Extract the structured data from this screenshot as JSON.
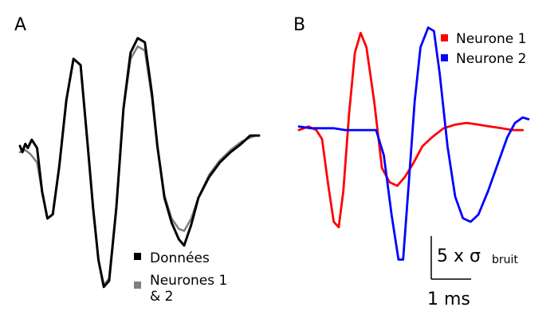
{
  "chart_data": [
    {
      "type": "line",
      "panel": "A",
      "xlabel": "",
      "ylabel": "",
      "series": [
        {
          "name": "Données",
          "color": "#000000",
          "values": [
            [
              0,
              0.0
            ],
            [
              0.07,
              -0.3
            ],
            [
              0.15,
              0.1
            ],
            [
              0.22,
              -0.1
            ],
            [
              0.33,
              0.3
            ],
            [
              0.48,
              -0.1
            ],
            [
              0.62,
              -2.2
            ],
            [
              0.77,
              -3.5
            ],
            [
              0.92,
              -3.3
            ],
            [
              1.1,
              -1.0
            ],
            [
              1.3,
              2.2
            ],
            [
              1.5,
              4.2
            ],
            [
              1.7,
              3.9
            ],
            [
              1.9,
              0.0
            ],
            [
              2.05,
              -3.0
            ],
            [
              2.2,
              -5.5
            ],
            [
              2.35,
              -6.8
            ],
            [
              2.5,
              -6.5
            ],
            [
              2.7,
              -3.0
            ],
            [
              2.9,
              1.8
            ],
            [
              3.1,
              4.5
            ],
            [
              3.3,
              5.2
            ],
            [
              3.5,
              5.0
            ],
            [
              3.7,
              2.5
            ],
            [
              3.85,
              0.0
            ],
            [
              4.05,
              -2.5
            ],
            [
              4.25,
              -3.7
            ],
            [
              4.45,
              -4.5
            ],
            [
              4.6,
              -4.8
            ],
            [
              4.8,
              -3.8
            ],
            [
              5.0,
              -2.5
            ],
            [
              5.3,
              -1.5
            ],
            [
              5.6,
              -0.8
            ],
            [
              5.9,
              -0.3
            ],
            [
              6.2,
              0.1
            ],
            [
              6.45,
              0.5
            ],
            [
              6.7,
              0.5
            ]
          ]
        },
        {
          "name": "Neurones 1 & 2",
          "color": "#808080",
          "values": [
            [
              0,
              -0.3
            ],
            [
              0.15,
              -0.2
            ],
            [
              0.3,
              -0.4
            ],
            [
              0.48,
              -0.8
            ],
            [
              0.62,
              -2.2
            ],
            [
              0.77,
              -3.5
            ],
            [
              0.92,
              -3.3
            ],
            [
              1.1,
              -1.0
            ],
            [
              1.3,
              2.2
            ],
            [
              1.5,
              4.2
            ],
            [
              1.7,
              3.9
            ],
            [
              1.9,
              0.0
            ],
            [
              2.05,
              -3.0
            ],
            [
              2.2,
              -5.5
            ],
            [
              2.35,
              -6.7
            ],
            [
              2.5,
              -6.4
            ],
            [
              2.7,
              -3.0
            ],
            [
              2.9,
              1.8
            ],
            [
              3.1,
              4.2
            ],
            [
              3.3,
              4.8
            ],
            [
              3.5,
              4.6
            ],
            [
              3.7,
              2.3
            ],
            [
              3.85,
              0.0
            ],
            [
              4.05,
              -2.4
            ],
            [
              4.25,
              -3.5
            ],
            [
              4.45,
              -4.0
            ],
            [
              4.6,
              -4.1
            ],
            [
              4.8,
              -3.5
            ],
            [
              5.0,
              -2.5
            ],
            [
              5.3,
              -1.4
            ],
            [
              5.6,
              -0.7
            ],
            [
              5.9,
              -0.2
            ],
            [
              6.2,
              0.2
            ],
            [
              6.45,
              0.4
            ],
            [
              6.6,
              0.5
            ]
          ]
        }
      ],
      "legend": [
        {
          "label": "Données",
          "color": "#000000"
        },
        {
          "label_line1": "Neurones 1",
          "label_line2": "& 2",
          "color": "#808080"
        }
      ],
      "legend_position": "bottom-right",
      "xlim": [
        0,
        6.7
      ],
      "ylim": [
        -7.5,
        5.5
      ],
      "grid": false
    },
    {
      "type": "line",
      "panel": "B",
      "xlabel": "",
      "ylabel": "",
      "series": [
        {
          "name": "Neurone 1",
          "color": "#ff0000",
          "values": [
            [
              0,
              -0.1
            ],
            [
              0.25,
              0.1
            ],
            [
              0.45,
              -0.1
            ],
            [
              0.6,
              -0.6
            ],
            [
              0.75,
              -3.0
            ],
            [
              0.9,
              -5.2
            ],
            [
              1.03,
              -5.5
            ],
            [
              1.15,
              -3.5
            ],
            [
              1.3,
              0.8
            ],
            [
              1.45,
              4.2
            ],
            [
              1.6,
              5.3
            ],
            [
              1.75,
              4.5
            ],
            [
              1.95,
              1.5
            ],
            [
              2.15,
              -2.2
            ],
            [
              2.35,
              -3.0
            ],
            [
              2.55,
              -3.2
            ],
            [
              2.75,
              -2.7
            ],
            [
              2.95,
              -2.0
            ],
            [
              3.2,
              -1.0
            ],
            [
              3.45,
              -0.5
            ],
            [
              3.75,
              0.0
            ],
            [
              4.05,
              0.2
            ],
            [
              4.35,
              0.3
            ],
            [
              4.65,
              0.2
            ],
            [
              4.95,
              0.1
            ],
            [
              5.25,
              0.0
            ],
            [
              5.55,
              -0.1
            ],
            [
              5.8,
              -0.1
            ]
          ]
        },
        {
          "name": "Neurone 2",
          "color": "#0000ff",
          "values": [
            [
              0,
              0.1
            ],
            [
              0.3,
              0.0
            ],
            [
              0.6,
              0.0
            ],
            [
              0.9,
              0.0
            ],
            [
              1.2,
              -0.1
            ],
            [
              1.5,
              -0.1
            ],
            [
              1.8,
              -0.1
            ],
            [
              2.0,
              -0.1
            ],
            [
              2.2,
              -1.5
            ],
            [
              2.4,
              -4.8
            ],
            [
              2.58,
              -7.3
            ],
            [
              2.7,
              -7.3
            ],
            [
              2.85,
              -3.0
            ],
            [
              3.0,
              1.5
            ],
            [
              3.15,
              4.5
            ],
            [
              3.35,
              5.6
            ],
            [
              3.5,
              5.4
            ],
            [
              3.65,
              3.0
            ],
            [
              3.85,
              -1.0
            ],
            [
              4.05,
              -3.8
            ],
            [
              4.25,
              -5.0
            ],
            [
              4.45,
              -5.2
            ],
            [
              4.65,
              -4.8
            ],
            [
              4.9,
              -3.5
            ],
            [
              5.15,
              -2.0
            ],
            [
              5.4,
              -0.5
            ],
            [
              5.6,
              0.3
            ],
            [
              5.8,
              0.6
            ],
            [
              5.95,
              0.5
            ]
          ]
        }
      ],
      "legend": [
        {
          "label": "Neurone 1",
          "color": "#ff0000"
        },
        {
          "label": "Neurone 2",
          "color": "#0000ff"
        }
      ],
      "legend_position": "top-right",
      "scale_bar": {
        "x_label": "1 ms",
        "y_label_main": "5 x σ",
        "y_label_sub": "bruit"
      },
      "xlim": [
        0,
        5.95
      ],
      "ylim": [
        -7.5,
        5.8
      ],
      "grid": false
    }
  ]
}
